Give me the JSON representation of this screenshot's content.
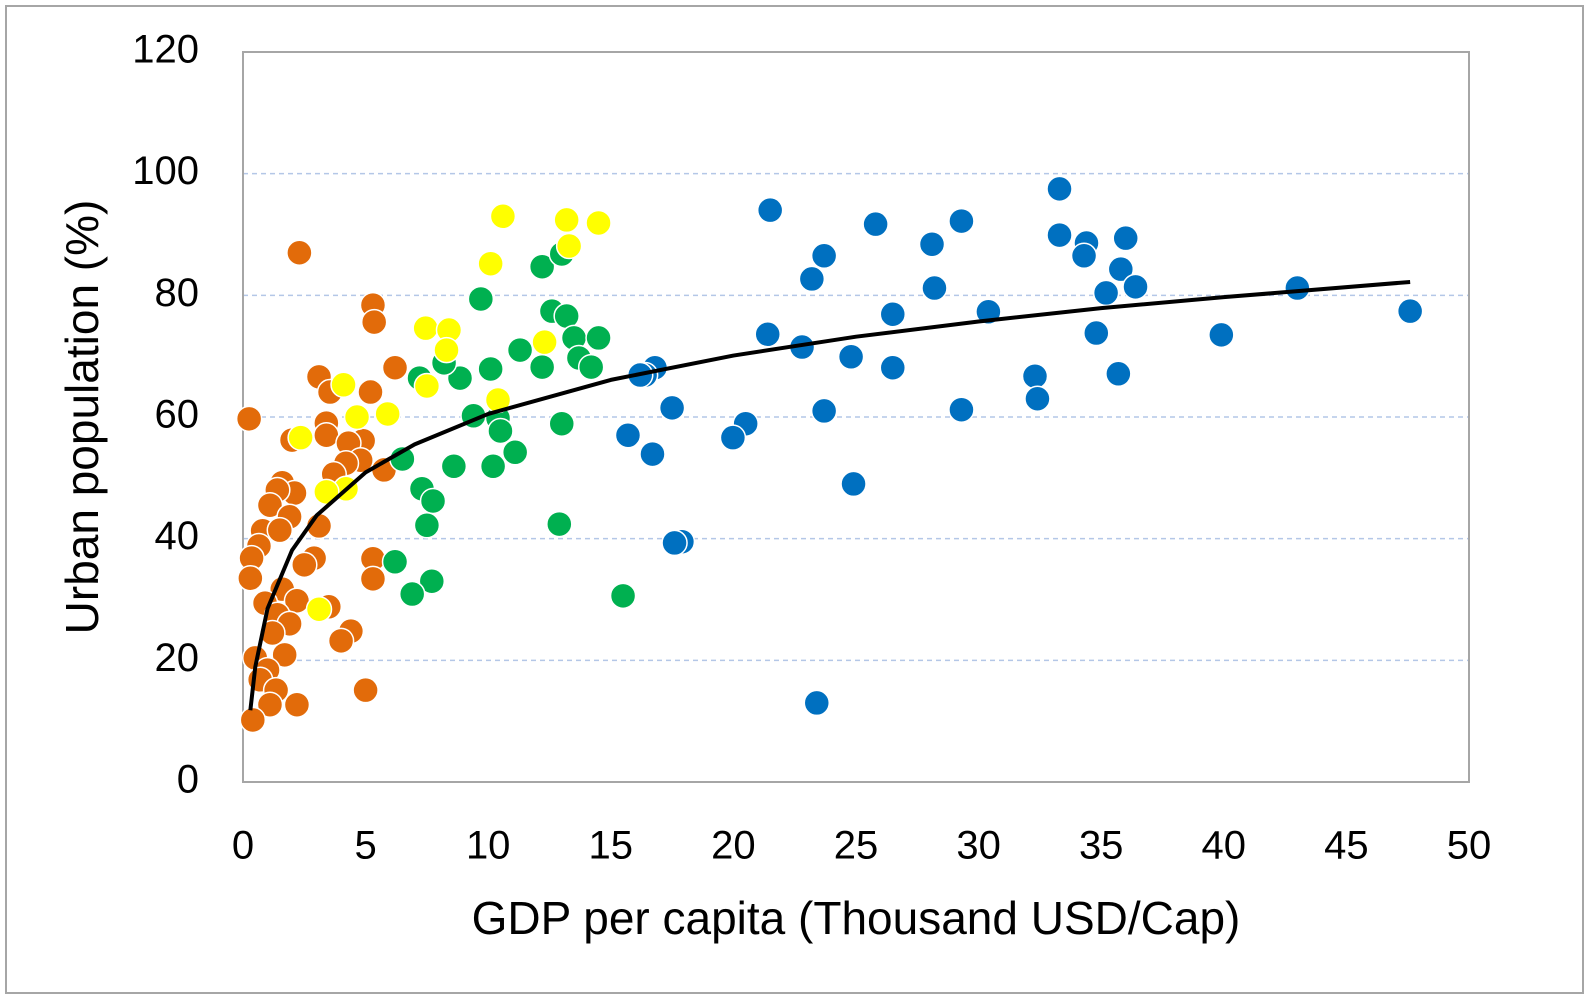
{
  "chart_data": {
    "type": "scatter",
    "xlabel": "GDP per capita (Thousand USD/Cap)",
    "ylabel": "Urban population (%)",
    "xlim": [
      0,
      50
    ],
    "xticks": [
      0,
      5,
      10,
      15,
      20,
      25,
      30,
      35,
      40,
      45,
      50
    ],
    "ylim": [
      0,
      120
    ],
    "yticks": [
      0,
      20,
      40,
      60,
      80,
      100,
      120
    ],
    "grid": true,
    "series": [
      {
        "color": "#e26b0a",
        "x": [
          0.25,
          2.3,
          5.3,
          5.35,
          6.2,
          3.1,
          3.55,
          5.2,
          3.4,
          3.4,
          2.0,
          4.9,
          4.3,
          4.8,
          4.2,
          5.75,
          3.7,
          1.6,
          2.1,
          1.4,
          1.1,
          1.9,
          3.1,
          0.8,
          1.5,
          0.65,
          0.35,
          2.9,
          5.3,
          2.5,
          0.3,
          5.3,
          1.6,
          0.9,
          2.2,
          3.5,
          1.4,
          1.9,
          1.2,
          4.4,
          4.0,
          1.7,
          0.5,
          1.0,
          0.7,
          1.35,
          5.0,
          1.1,
          2.2,
          0.4
        ],
        "values": [
          59.7,
          87.0,
          78.4,
          75.6,
          68.1,
          66.6,
          64.1,
          64.1,
          59.0,
          57.0,
          56.2,
          56.1,
          55.7,
          52.9,
          52.4,
          51.3,
          50.6,
          49.2,
          47.5,
          48.0,
          45.5,
          43.6,
          42.1,
          41.3,
          41.4,
          38.8,
          36.8,
          36.8,
          36.7,
          35.7,
          33.5,
          33.4,
          31.7,
          29.4,
          29.8,
          28.8,
          27.5,
          26.0,
          24.5,
          24.8,
          23.2,
          20.9,
          20.4,
          18.4,
          16.8,
          15.1,
          15.1,
          12.7,
          12.7,
          10.2
        ]
      },
      {
        "color": "#00b050",
        "x": [
          9.7,
          12.2,
          13.0,
          12.6,
          13.2,
          13.5,
          14.5,
          13.7,
          14.2,
          11.3,
          12.2,
          10.1,
          8.85,
          8.2,
          9.4,
          10.4,
          10.5,
          11.1,
          10.2,
          8.6,
          13.0,
          6.5,
          7.3,
          7.75,
          7.5,
          12.9,
          6.2,
          7.7,
          6.9,
          15.5,
          7.2
        ],
        "values": [
          79.4,
          84.7,
          86.8,
          77.4,
          76.6,
          73.0,
          73.0,
          69.7,
          68.2,
          71.0,
          68.2,
          67.9,
          66.4,
          68.9,
          60.2,
          59.8,
          57.7,
          54.2,
          51.9,
          51.9,
          58.9,
          53.1,
          48.2,
          46.2,
          42.2,
          42.4,
          36.2,
          33.0,
          30.9,
          30.6,
          66.4
        ]
      },
      {
        "color": "#ffff00",
        "x": [
          10.6,
          13.2,
          14.5,
          13.3,
          10.1,
          7.45,
          8.4,
          8.3,
          12.3,
          4.1,
          7.5,
          10.4,
          4.65,
          5.9,
          2.35,
          4.2,
          3.4,
          3.1
        ],
        "values": [
          93.0,
          92.4,
          91.9,
          88.1,
          85.2,
          74.6,
          74.3,
          71.0,
          72.3,
          65.3,
          65.1,
          62.8,
          60.0,
          60.5,
          56.6,
          48.2,
          47.7,
          28.4
        ]
      },
      {
        "color": "#0070c0",
        "x": [
          21.5,
          23.2,
          23.7,
          25.8,
          28.1,
          28.2,
          29.3,
          33.3,
          33.3,
          34.4,
          34.3,
          36.0,
          35.8,
          35.2,
          36.4,
          43.0,
          47.6,
          39.9,
          34.8,
          35.7,
          30.4,
          26.5,
          26.5,
          24.8,
          21.4,
          22.8,
          32.3,
          32.4,
          29.3,
          23.7,
          20.5,
          19.98,
          24.9,
          23.4,
          16.8,
          16.4,
          16.2,
          17.5,
          15.7,
          16.7,
          17.9,
          17.6
        ],
        "values": [
          94.0,
          82.7,
          86.5,
          91.7,
          88.4,
          81.2,
          92.2,
          97.5,
          89.9,
          88.6,
          86.5,
          89.4,
          84.3,
          80.4,
          81.4,
          81.2,
          77.4,
          73.5,
          73.8,
          67.1,
          77.3,
          76.9,
          68.1,
          69.9,
          73.6,
          71.5,
          66.7,
          63.0,
          61.2,
          61.0,
          58.9,
          56.6,
          49.0,
          13.0,
          68.1,
          66.9,
          66.9,
          61.5,
          57.0,
          53.9,
          39.5,
          39.3
        ]
      },
      {
        "type": "line",
        "color": "#000000",
        "x": [
          0.3,
          0.5,
          1,
          2,
          3,
          5,
          7,
          10,
          15,
          20,
          25,
          30,
          35,
          40,
          47.6
        ],
        "values": [
          11.8,
          18.9,
          28.5,
          38.1,
          43.8,
          50.9,
          55.5,
          60.5,
          66.1,
          70.1,
          73.2,
          75.7,
          77.9,
          79.7,
          82.2
        ]
      }
    ]
  }
}
